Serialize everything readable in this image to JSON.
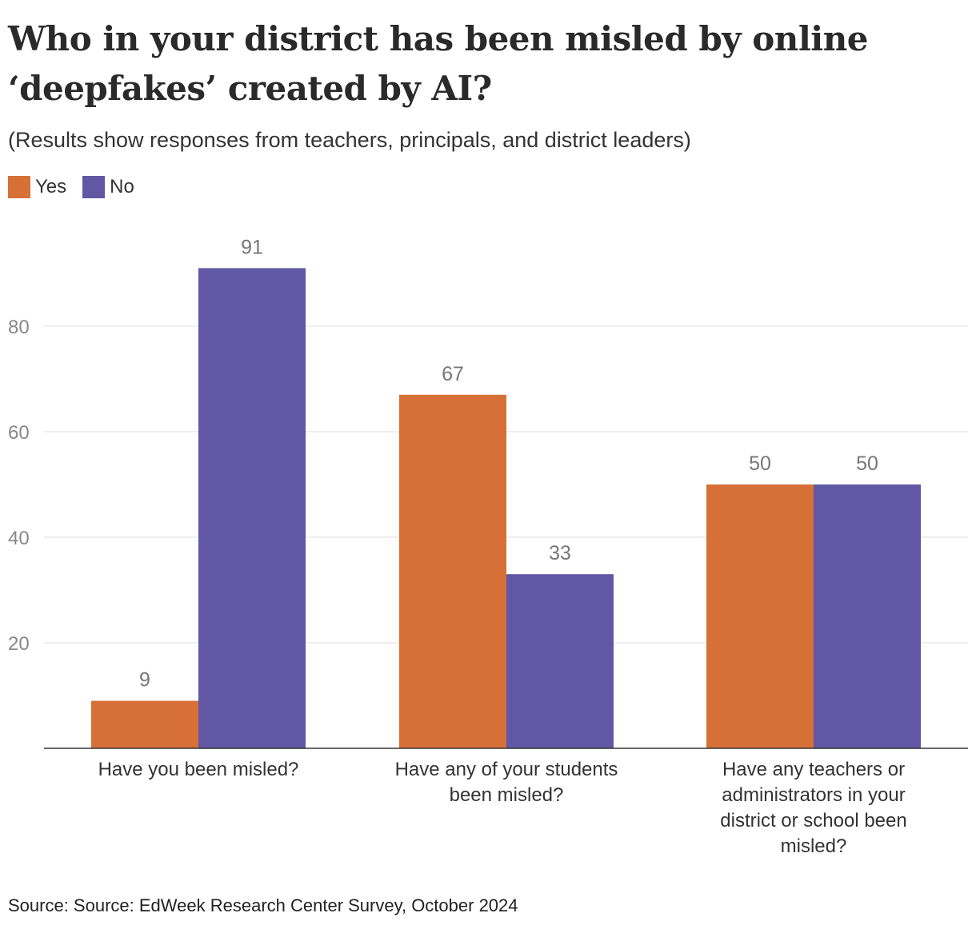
{
  "title": "Who in your district has been misled by online ‘deepfakes’ created by AI?",
  "subtitle": "(Results show responses from teachers, principals, and district leaders)",
  "source": "Source: Source: EdWeek Research Center Survey, October 2024",
  "colors": {
    "yes": "#d67036",
    "no": "#6157a4"
  },
  "chart_data": {
    "type": "bar",
    "categories": [
      [
        "Have you been misled?"
      ],
      [
        "Have any of your students",
        "been misled?"
      ],
      [
        "Have any teachers or",
        "administrators in your",
        "district or school been",
        "misled?"
      ]
    ],
    "series": [
      {
        "name": "Yes",
        "values": [
          9,
          67,
          50
        ]
      },
      {
        "name": "No",
        "values": [
          91,
          33,
          50
        ]
      }
    ],
    "ylim": [
      0,
      100
    ],
    "yticks": [
      20,
      40,
      60,
      80
    ],
    "grid": true,
    "legend": "top-left"
  }
}
